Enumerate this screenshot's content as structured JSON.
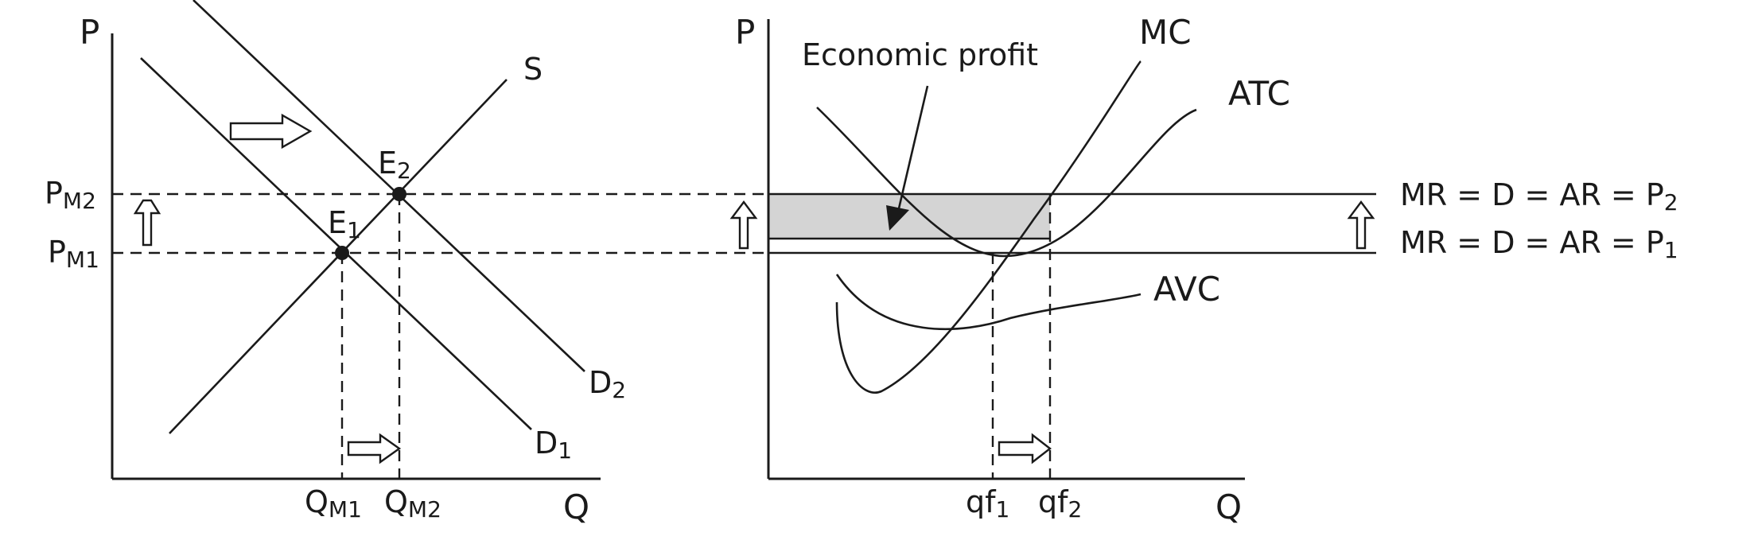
{
  "left_panel": {
    "y_axis_label": "P",
    "x_axis_label": "Q",
    "supply_label": "S",
    "demand1": {
      "main": "D",
      "sub": "1"
    },
    "demand2": {
      "main": "D",
      "sub": "2"
    },
    "eq1": {
      "main": "E",
      "sub": "1"
    },
    "eq2": {
      "main": "E",
      "sub": "2"
    },
    "price1": {
      "main": "P",
      "sub": "M1"
    },
    "price2": {
      "main": "P",
      "sub": "M2"
    },
    "qty1": {
      "main": "Q",
      "sub": "M1"
    },
    "qty2": {
      "main": "Q",
      "sub": "M2"
    }
  },
  "right_panel": {
    "y_axis_label": "P",
    "x_axis_label": "Q",
    "mc_label": "MC",
    "atc_label": "ATC",
    "avc_label": "AVC",
    "profit_label": "Economic profit",
    "mr2": {
      "main": "MR = D = AR = P",
      "sub": "2"
    },
    "mr1": {
      "main": "MR = D = AR = P",
      "sub": "1"
    },
    "qf1": {
      "main": "qf",
      "sub": "1"
    },
    "qf2": {
      "main": "qf",
      "sub": "2"
    }
  },
  "colors": {
    "ink": "#1a1a1a",
    "profit_fill": "#d4d4d4",
    "background": "#ffffff"
  }
}
